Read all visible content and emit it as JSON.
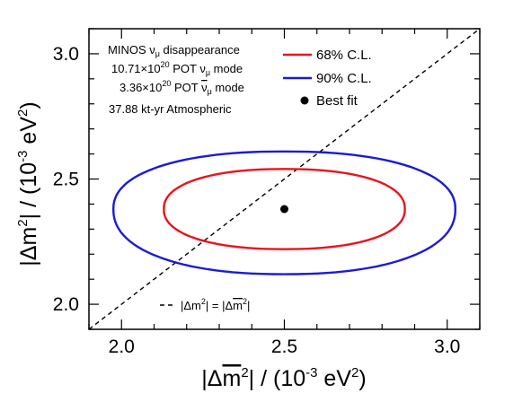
{
  "chart_data": {
    "type": "scatter",
    "xlabel": "|Δm̄²| / (10⁻³ eV²)",
    "ylabel": "|Δm²| / (10⁻³ eV²)",
    "xlim": [
      1.9,
      3.1
    ],
    "ylim": [
      1.9,
      3.1
    ],
    "x_ticks": [
      "2.0",
      "2.5",
      "3.0"
    ],
    "y_ticks": [
      "2.0",
      "2.5",
      "3.0"
    ],
    "annotations": [
      "MINOS νμ disappearance",
      "10.71×10²⁰ POT νμ mode",
      "3.36×10²⁰ POT ν̄μ mode",
      "37.88 kt-yr Atmospheric"
    ],
    "legend": {
      "placement": "top-right",
      "entries": [
        {
          "label": "68% C.L.",
          "color": "#e8141c",
          "marker": "line"
        },
        {
          "label": "90% C.L.",
          "color": "#1b1bd6",
          "marker": "line"
        },
        {
          "label": "Best fit",
          "color": "#000000",
          "marker": "dot"
        }
      ]
    },
    "reference_line": {
      "label": "|Δm²| = |Δm̄²|",
      "style": "dashed",
      "points": [
        [
          1.9,
          1.9
        ],
        [
          3.1,
          3.1
        ]
      ]
    },
    "series": [
      {
        "name": "68% C.L.",
        "color": "#e8141c",
        "kind": "contour",
        "center": [
          2.5,
          2.38
        ],
        "x_range": [
          2.13,
          2.87
        ],
        "y_range": [
          2.22,
          2.54
        ]
      },
      {
        "name": "90% C.L.",
        "color": "#1b1bd6",
        "kind": "contour",
        "center": [
          2.5,
          2.38
        ],
        "x_range": [
          1.99,
          3.04
        ],
        "y_range": [
          2.12,
          2.61
        ]
      },
      {
        "name": "Best fit",
        "color": "#000000",
        "kind": "point",
        "x": 2.5,
        "y": 2.38
      }
    ]
  }
}
